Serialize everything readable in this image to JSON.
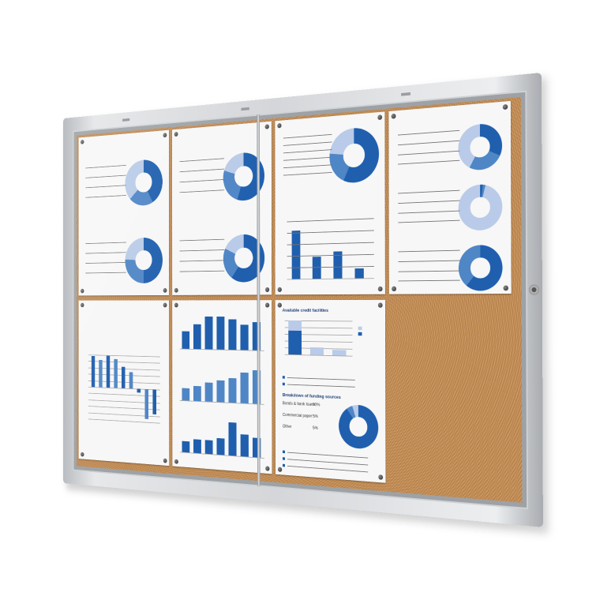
{
  "colors": {
    "dark": "#1f5fae",
    "mid": "#4f86c6",
    "light": "#b9cbe8",
    "cork": "#c48f58",
    "frame": "#d6d8db"
  },
  "board": {
    "columns": 4,
    "rows": 2,
    "empty_slot": "bottom-right"
  },
  "papers": [
    {
      "type": "donuts",
      "donuts": [
        [
          0.42,
          0.21,
          0.37
        ],
        [
          0.5,
          0.26,
          0.24
        ]
      ]
    },
    {
      "type": "donuts",
      "donuts": [
        [
          0.55,
          0.25,
          0.2
        ],
        [
          0.6,
          0.22,
          0.18
        ]
      ]
    },
    {
      "type": "donut-bars",
      "donuts": [
        [
          0.57,
          0.2,
          0.23
        ]
      ],
      "bars": [
        31,
        14,
        17,
        6
      ]
    },
    {
      "type": "donuts",
      "donuts": [
        [
          0.32,
          0.26,
          0.42
        ],
        [
          0.02,
          0.02,
          0.96
        ],
        [
          0.61,
          0.39,
          0.0
        ]
      ]
    },
    {
      "type": "bars-neg",
      "bars": [
        6.3,
        5.5,
        6.4,
        5.8,
        4.3,
        3.2,
        -0.7,
        -5.9,
        -4.9
      ]
    },
    {
      "type": "bars3",
      "bars": [
        [
          1.4,
          2.0,
          2.6,
          2.6,
          2.4,
          2.0,
          2.2
        ],
        [
          0.9,
          1.1,
          1.4,
          1.6,
          1.8,
          2.2,
          2.4
        ],
        [
          0.4,
          0.5,
          0.5,
          0.6,
          1.2,
          0.8,
          0.7
        ]
      ]
    },
    {
      "type": "credit",
      "title": "Available credit facilities",
      "bars": [
        20,
        4.4,
        3.4
      ],
      "title2": "Breakdown of funding sources",
      "rows": [
        {
          "label": "Bonds & bank loans",
          "value": "90%"
        },
        {
          "label": "Commercial paper",
          "value": "5%"
        },
        {
          "label": "Other",
          "value": "5%"
        }
      ],
      "donut": [
        0.9,
        0.05,
        0.05
      ]
    }
  ]
}
